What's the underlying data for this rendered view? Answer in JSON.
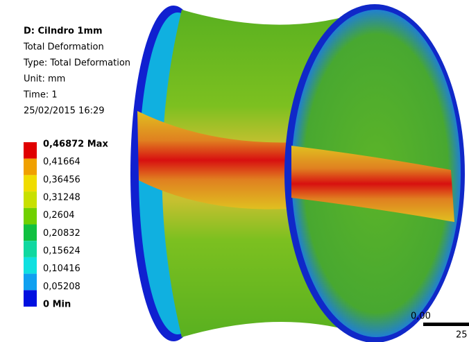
{
  "header": {
    "title": "D: Cilndro 1mm",
    "lines": [
      "Total Deformation",
      "Type: Total Deformation",
      "Unit: mm",
      "Time: 1",
      "25/02/2015 16:29"
    ]
  },
  "legend": {
    "labels": [
      "0,46872 Max",
      "0,41664",
      "0,36456",
      "0,31248",
      "0,2604",
      "0,20832",
      "0,15624",
      "0,10416",
      "0,05208",
      "0 Min"
    ],
    "colors": [
      "#e00000",
      "#f0a000",
      "#f0dc00",
      "#c8e000",
      "#70d000",
      "#10c040",
      "#10d8a0",
      "#10e0e0",
      "#10a0f0",
      "#0010e0"
    ]
  },
  "scale_bar": {
    "start": "0,00",
    "end": "25"
  }
}
